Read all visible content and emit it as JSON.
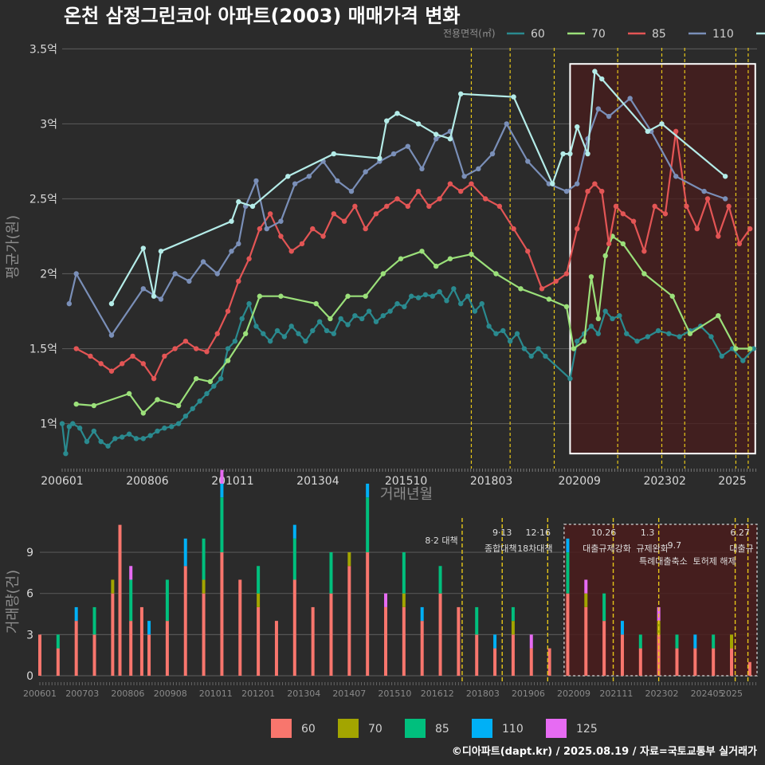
{
  "title": "온천 삼정그린코아 아파트(2003) 매매가격 변화",
  "footer": "©디아파트(dapt.kr) / 2025.08.19 / 자료=국토교통부 실거래가",
  "legend": {
    "title": "전용면적(㎡)",
    "position": "top-right"
  },
  "bottom_legend": {
    "position": "bottom-center"
  },
  "colors": {
    "background": "#2b2b2b",
    "grid": "#555555",
    "price_60": "#2a8a8f",
    "price_70": "#9be07a",
    "price_85": "#e35555",
    "price_110": "#7a8fb8",
    "price_125": "#b4ece8",
    "vol_60": "#f8766d",
    "vol_70": "#a3a500",
    "vol_85": "#00bf7d",
    "vol_110": "#00b0f6",
    "vol_125": "#e76bf3",
    "event_line": "#e6c619",
    "highlight_border": "#ffffff",
    "highlight_fill": "#4a1c1c"
  },
  "chart_data": [
    {
      "type": "line",
      "subtype": "line+scatter",
      "title": "온천 삼정그린코아 아파트(2003) 매매가격 변화",
      "xlabel": "거래년월",
      "ylabel": "평균가(원)",
      "x_ticks": [
        "200601",
        "200806",
        "201011",
        "201304",
        "201510",
        "201803",
        "202009",
        "202302",
        "2025"
      ],
      "x_range": [
        2006.0,
        2025.7
      ],
      "y_ticks": [
        "1억",
        "1.5억",
        "2억",
        "2.5억",
        "3억",
        "3.5억"
      ],
      "y_tick_values": [
        1.0,
        1.5,
        2.0,
        2.5,
        3.0,
        3.5
      ],
      "y_unit": "억원",
      "ylim": [
        0.7,
        3.55
      ],
      "grid": true,
      "highlight_region": {
        "x": [
          2020.4,
          2025.65
        ],
        "y": [
          0.8,
          3.4
        ]
      },
      "event_lines": [
        2017.6,
        2018.7,
        2019.95,
        2021.75,
        2023.0,
        2023.65,
        2025.1,
        2025.45
      ],
      "series": [
        {
          "name": "60",
          "x": [
            2006.0,
            2006.1,
            2006.2,
            2006.3,
            2006.5,
            2006.7,
            2006.9,
            2007.1,
            2007.3,
            2007.5,
            2007.7,
            2007.9,
            2008.1,
            2008.3,
            2008.5,
            2008.7,
            2008.9,
            2009.1,
            2009.3,
            2009.5,
            2009.7,
            2009.9,
            2010.1,
            2010.3,
            2010.5,
            2010.7,
            2010.9,
            2011.1,
            2011.3,
            2011.5,
            2011.7,
            2011.9,
            2012.1,
            2012.3,
            2012.5,
            2012.7,
            2012.9,
            2013.1,
            2013.3,
            2013.5,
            2013.7,
            2013.9,
            2014.1,
            2014.3,
            2014.5,
            2014.7,
            2014.9,
            2015.1,
            2015.3,
            2015.5,
            2015.7,
            2015.9,
            2016.1,
            2016.3,
            2016.5,
            2016.7,
            2016.9,
            2017.1,
            2017.3,
            2017.5,
            2017.7,
            2017.9,
            2018.1,
            2018.3,
            2018.5,
            2018.7,
            2018.9,
            2019.1,
            2019.3,
            2019.5,
            2019.7,
            2020.4,
            2020.6,
            2020.8,
            2021.0,
            2021.2,
            2021.4,
            2021.6,
            2021.8,
            2022.0,
            2022.3,
            2022.6,
            2022.9,
            2023.2,
            2023.5,
            2023.8,
            2024.1,
            2024.4,
            2024.7,
            2025.0,
            2025.3,
            2025.6
          ],
          "y": [
            1.0,
            0.8,
            0.98,
            1.0,
            0.97,
            0.88,
            0.95,
            0.88,
            0.85,
            0.9,
            0.91,
            0.93,
            0.9,
            0.9,
            0.92,
            0.95,
            0.97,
            0.98,
            1.0,
            1.05,
            1.1,
            1.15,
            1.2,
            1.25,
            1.3,
            1.5,
            1.55,
            1.7,
            1.8,
            1.65,
            1.6,
            1.55,
            1.62,
            1.58,
            1.65,
            1.6,
            1.55,
            1.62,
            1.68,
            1.62,
            1.6,
            1.7,
            1.66,
            1.72,
            1.7,
            1.75,
            1.68,
            1.72,
            1.75,
            1.8,
            1.78,
            1.85,
            1.84,
            1.86,
            1.85,
            1.88,
            1.82,
            1.9,
            1.8,
            1.85,
            1.75,
            1.8,
            1.65,
            1.6,
            1.62,
            1.55,
            1.6,
            1.5,
            1.45,
            1.5,
            1.45,
            1.3,
            1.55,
            1.6,
            1.65,
            1.6,
            1.75,
            1.7,
            1.72,
            1.6,
            1.55,
            1.58,
            1.62,
            1.6,
            1.58,
            1.62,
            1.65,
            1.58,
            1.45,
            1.5,
            1.42,
            1.5
          ]
        },
        {
          "name": "70",
          "x": [
            2006.4,
            2006.9,
            2007.9,
            2008.3,
            2008.7,
            2009.3,
            2009.8,
            2010.2,
            2010.7,
            2011.2,
            2011.6,
            2012.2,
            2013.2,
            2013.6,
            2014.1,
            2014.6,
            2015.1,
            2015.6,
            2016.2,
            2016.6,
            2017.0,
            2017.6,
            2018.3,
            2019.0,
            2019.8,
            2020.3,
            2020.5,
            2020.8,
            2021.0,
            2021.2,
            2021.4,
            2021.6,
            2021.9,
            2022.5,
            2023.3,
            2023.8,
            2024.6,
            2025.1,
            2025.5
          ],
          "y": [
            1.13,
            1.12,
            1.2,
            1.07,
            1.16,
            1.12,
            1.3,
            1.28,
            1.42,
            1.6,
            1.85,
            1.85,
            1.8,
            1.7,
            1.85,
            1.85,
            2.0,
            2.1,
            2.15,
            2.05,
            2.1,
            2.13,
            2.0,
            1.9,
            1.83,
            1.78,
            1.5,
            1.55,
            1.98,
            1.7,
            2.12,
            2.25,
            2.2,
            2.0,
            1.85,
            1.6,
            1.72,
            1.5,
            1.5
          ]
        },
        {
          "name": "85",
          "x": [
            2006.4,
            2006.8,
            2007.1,
            2007.4,
            2007.7,
            2008.0,
            2008.3,
            2008.6,
            2008.9,
            2009.2,
            2009.5,
            2009.8,
            2010.1,
            2010.4,
            2010.7,
            2011.0,
            2011.3,
            2011.6,
            2011.9,
            2012.2,
            2012.5,
            2012.8,
            2013.1,
            2013.4,
            2013.7,
            2014.0,
            2014.3,
            2014.6,
            2014.9,
            2015.2,
            2015.5,
            2015.8,
            2016.1,
            2016.4,
            2016.7,
            2017.0,
            2017.3,
            2017.6,
            2018.0,
            2018.4,
            2018.8,
            2019.2,
            2019.6,
            2020.0,
            2020.3,
            2020.6,
            2020.9,
            2021.1,
            2021.3,
            2021.5,
            2021.7,
            2021.9,
            2022.2,
            2022.5,
            2022.8,
            2023.1,
            2023.4,
            2023.7,
            2024.0,
            2024.3,
            2024.6,
            2024.9,
            2025.2,
            2025.5
          ],
          "y": [
            1.5,
            1.45,
            1.4,
            1.35,
            1.4,
            1.45,
            1.4,
            1.3,
            1.45,
            1.5,
            1.55,
            1.5,
            1.48,
            1.6,
            1.75,
            1.95,
            2.1,
            2.3,
            2.4,
            2.25,
            2.15,
            2.2,
            2.3,
            2.25,
            2.4,
            2.35,
            2.45,
            2.3,
            2.4,
            2.45,
            2.5,
            2.45,
            2.55,
            2.45,
            2.5,
            2.6,
            2.55,
            2.6,
            2.5,
            2.45,
            2.3,
            2.15,
            1.9,
            1.95,
            2.0,
            2.3,
            2.55,
            2.6,
            2.55,
            2.2,
            2.45,
            2.4,
            2.35,
            2.15,
            2.45,
            2.4,
            2.95,
            2.45,
            2.3,
            2.5,
            2.25,
            2.45,
            2.2,
            2.3
          ]
        },
        {
          "name": "110",
          "x": [
            2006.2,
            2006.4,
            2007.4,
            2008.3,
            2008.8,
            2009.2,
            2009.6,
            2010.0,
            2010.4,
            2010.8,
            2011.0,
            2011.2,
            2011.5,
            2011.8,
            2012.2,
            2012.6,
            2013.0,
            2013.4,
            2013.8,
            2014.2,
            2014.6,
            2015.0,
            2015.4,
            2015.8,
            2016.2,
            2016.6,
            2017.0,
            2017.4,
            2017.8,
            2018.2,
            2018.6,
            2019.2,
            2019.8,
            2020.3,
            2020.6,
            2020.9,
            2021.2,
            2021.5,
            2022.1,
            2022.7,
            2023.4,
            2024.2,
            2024.8
          ],
          "y": [
            1.8,
            2.0,
            1.59,
            1.9,
            1.83,
            2.0,
            1.95,
            2.08,
            2.0,
            2.15,
            2.2,
            2.45,
            2.62,
            2.3,
            2.35,
            2.6,
            2.65,
            2.75,
            2.62,
            2.55,
            2.68,
            2.75,
            2.8,
            2.85,
            2.7,
            2.9,
            2.95,
            2.65,
            2.7,
            2.8,
            3.0,
            2.75,
            2.6,
            2.55,
            2.6,
            2.9,
            3.1,
            3.05,
            3.17,
            2.95,
            2.65,
            2.55,
            2.5
          ]
        },
        {
          "name": "125",
          "x": [
            2007.4,
            2008.3,
            2008.6,
            2008.8,
            2010.8,
            2011.0,
            2011.4,
            2012.4,
            2013.7,
            2015.0,
            2015.2,
            2015.5,
            2016.1,
            2016.6,
            2017.0,
            2017.3,
            2018.8,
            2019.9,
            2020.2,
            2020.4,
            2020.6,
            2020.9,
            2021.1,
            2021.3,
            2022.6,
            2023.0,
            2024.8
          ],
          "y": [
            1.8,
            2.17,
            1.85,
            2.15,
            2.35,
            2.48,
            2.45,
            2.65,
            2.8,
            2.77,
            3.02,
            3.07,
            3.0,
            2.93,
            2.9,
            3.2,
            3.18,
            2.6,
            2.8,
            2.8,
            2.98,
            2.8,
            3.35,
            3.3,
            2.95,
            3.0,
            2.65
          ]
        }
      ]
    },
    {
      "type": "bar",
      "subtype": "stacked",
      "xlabel": "",
      "ylabel": "거래량(건)",
      "x_ticks": [
        "200601",
        "200703",
        "200806",
        "200908",
        "201011",
        "201201",
        "201304",
        "201407",
        "201510",
        "201612",
        "201803",
        "201906",
        "202009",
        "202111",
        "202302",
        "202405",
        "2025"
      ],
      "x_range": [
        2006.0,
        2025.7
      ],
      "y_ticks": [
        "0",
        "3",
        "6",
        "9"
      ],
      "y_tick_values": [
        0,
        3,
        6,
        9
      ],
      "ylim": [
        0,
        11.5
      ],
      "grid": true,
      "highlight_region": {
        "x": [
          2020.4,
          2025.7
        ]
      },
      "event_lines": [
        2017.6,
        2018.7,
        2019.95,
        2021.75,
        2023.0,
        2025.1,
        2025.45
      ],
      "events": [
        {
          "date": "8·2",
          "label": "8·2 대책"
        },
        {
          "date": "9·13",
          "label": "종합대책"
        },
        {
          "date": "12·16",
          "label": "18차대책"
        },
        {
          "date": "10.26",
          "label": "대출규제강화"
        },
        {
          "date": "1.3",
          "label": "규제완화"
        },
        {
          "date": "9.7",
          "label": "특례대출축소"
        },
        {
          "date": "",
          "label": "토허제 해제"
        },
        {
          "date": "6.27",
          "label": "대출규"
        }
      ],
      "categories_note": "monthly",
      "series": [
        {
          "name": "60",
          "x": [
            2006.0,
            2006.5,
            2007.0,
            2007.5,
            2008.0,
            2008.2,
            2008.5,
            2008.8,
            2009.0,
            2009.5,
            2010.0,
            2010.5,
            2011.0,
            2011.5,
            2012.0,
            2012.5,
            2013.0,
            2013.5,
            2014.0,
            2014.5,
            2015.0,
            2015.5,
            2016.0,
            2016.5,
            2017.0,
            2017.5,
            2018.0,
            2018.5,
            2019.0,
            2019.5,
            2020.0,
            2020.5,
            2021.0,
            2021.5,
            2022.0,
            2022.5,
            2023.0,
            2023.5,
            2024.0,
            2024.5,
            2025.0,
            2025.5
          ],
          "values": [
            3,
            2,
            4,
            3,
            6,
            11,
            4,
            5,
            3,
            4,
            8,
            6,
            9,
            7,
            5,
            4,
            7,
            5,
            6,
            8,
            9,
            5,
            5,
            4,
            6,
            5,
            3,
            2,
            3,
            2,
            2,
            6,
            5,
            4,
            3,
            2,
            3,
            2,
            2,
            2,
            2,
            1
          ]
        },
        {
          "name": "70",
          "x": [
            2008.0,
            2010.5,
            2012.0,
            2014.5,
            2016.0,
            2019.0,
            2021.0,
            2023.0,
            2025.0
          ],
          "values": [
            1,
            1,
            1,
            1,
            1,
            1,
            1,
            1,
            1
          ]
        },
        {
          "name": "85",
          "x": [
            2006.5,
            2007.5,
            2008.5,
            2009.5,
            2010.5,
            2011.0,
            2012.0,
            2013.0,
            2014.0,
            2015.0,
            2016.0,
            2017.0,
            2018.0,
            2019.0,
            2020.5,
            2021.5,
            2022.5,
            2023.5,
            2024.5
          ],
          "values": [
            1,
            2,
            3,
            3,
            3,
            4,
            2,
            3,
            3,
            4,
            3,
            2,
            2,
            1,
            3,
            2,
            1,
            1,
            1
          ]
        },
        {
          "name": "110",
          "x": [
            2007.0,
            2009.0,
            2010.0,
            2011.0,
            2013.0,
            2015.0,
            2016.5,
            2018.5,
            2020.5,
            2022.0,
            2024.0
          ],
          "values": [
            1,
            1,
            2,
            1,
            1,
            1,
            1,
            1,
            1,
            1,
            1
          ]
        },
        {
          "name": "125",
          "x": [
            2008.5,
            2011.0,
            2015.5,
            2019.5,
            2021.0,
            2023.0
          ],
          "values": [
            1,
            1,
            1,
            1,
            1,
            1
          ]
        }
      ]
    }
  ]
}
